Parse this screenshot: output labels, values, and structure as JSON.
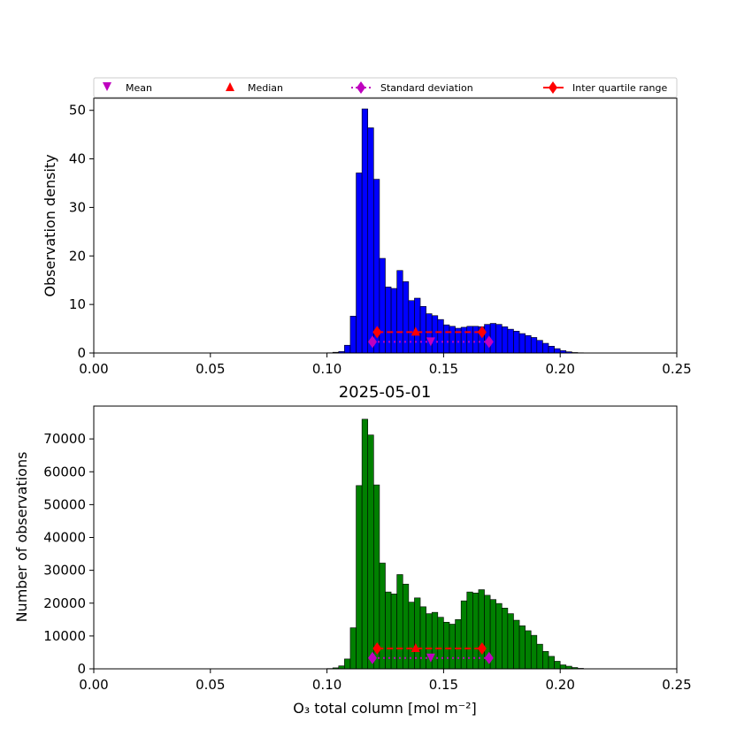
{
  "legend": {
    "mean": "Mean",
    "median": "Median",
    "std": "Standard deviation",
    "iqr": "Inter quartile range"
  },
  "colors": {
    "density_bars": "#0000ff",
    "count_bars": "#008000",
    "mean_marker": "#bf00bf",
    "median_marker": "#ff0000",
    "std_marker": "#bf00bf",
    "iqr_marker": "#ff0000"
  },
  "chart_data": [
    {
      "type": "bar",
      "title": "",
      "xlabel": "",
      "ylabel": "Observation density",
      "xlim": [
        0,
        0.25
      ],
      "ylim": [
        0,
        52.5
      ],
      "xticks": [
        "0.00",
        "0.05",
        "0.10",
        "0.15",
        "0.20",
        "0.25"
      ],
      "yticks": [
        "0",
        "10",
        "20",
        "30",
        "40",
        "50"
      ],
      "ytick_values": [
        0,
        10,
        20,
        30,
        40,
        50
      ],
      "bin_start": 0.1,
      "bin_width": 0.0025,
      "values": [
        0.05,
        0.15,
        0.3,
        1.6,
        7.6,
        37.1,
        50.3,
        46.4,
        35.8,
        19.5,
        13.6,
        13.3,
        17.0,
        14.7,
        10.8,
        11.3,
        9.6,
        8.1,
        7.7,
        6.9,
        5.8,
        5.5,
        5.1,
        5.3,
        5.5,
        5.5,
        5.4,
        5.9,
        6.1,
        5.9,
        5.4,
        4.9,
        4.5,
        4.0,
        3.6,
        3.2,
        2.6,
        2.0,
        1.4,
        0.9,
        0.5,
        0.25,
        0.1,
        0.05
      ],
      "stats": {
        "mean": 0.1445,
        "mean_y": 2.3,
        "median": 0.138,
        "median_y": 4.3,
        "std_range": [
          0.1195,
          0.1695
        ],
        "std_y": 2.3,
        "iqr_range": [
          0.1215,
          0.1665
        ],
        "iqr_y": 4.3
      }
    },
    {
      "type": "bar",
      "title": "2025-05-01",
      "xlabel": "O₃ total column [mol m⁻²]",
      "ylabel": "Number of observations",
      "xlim": [
        0,
        0.25
      ],
      "ylim": [
        0,
        80000
      ],
      "xticks": [
        "0.00",
        "0.05",
        "0.10",
        "0.15",
        "0.20",
        "0.25"
      ],
      "yticks": [
        "0",
        "10000",
        "20000",
        "30000",
        "40000",
        "50000",
        "60000",
        "70000"
      ],
      "ytick_values": [
        0,
        10000,
        20000,
        30000,
        40000,
        50000,
        60000,
        70000
      ],
      "bin_start": 0.1,
      "bin_width": 0.0025,
      "values": [
        100,
        300,
        900,
        3000,
        12500,
        55800,
        76000,
        71200,
        56000,
        32200,
        23400,
        22800,
        28700,
        25800,
        20300,
        21600,
        18900,
        16800,
        17200,
        15700,
        14200,
        13600,
        15000,
        20700,
        23400,
        23100,
        24100,
        22400,
        21100,
        19900,
        18500,
        16800,
        14800,
        13100,
        11600,
        10200,
        7500,
        5300,
        3800,
        2300,
        1200,
        800,
        400,
        150
      ],
      "stats": {
        "mean": 0.1445,
        "mean_y": 3300,
        "median": 0.138,
        "median_y": 6200,
        "std_range": [
          0.1195,
          0.1695
        ],
        "std_y": 3300,
        "iqr_range": [
          0.1215,
          0.1665
        ],
        "iqr_y": 6200
      }
    }
  ]
}
